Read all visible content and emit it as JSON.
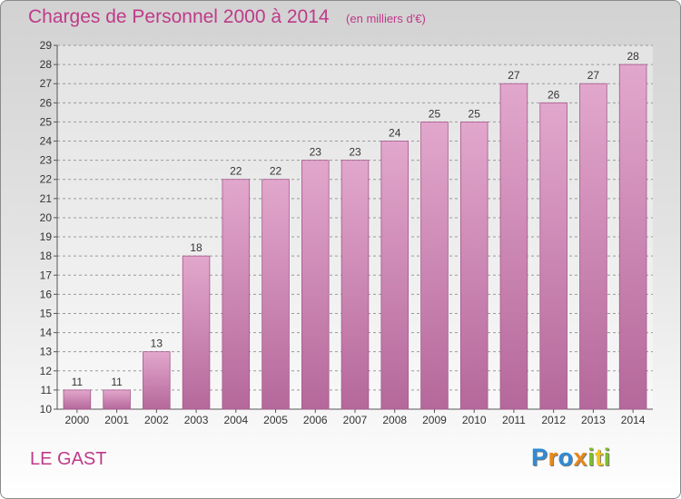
{
  "chart_data": {
    "type": "bar",
    "title": "Charges de Personnel 2000 à 2014",
    "subtitle": "(en milliers d'€)",
    "categories": [
      "2000",
      "2001",
      "2002",
      "2003",
      "2004",
      "2005",
      "2006",
      "2007",
      "2008",
      "2009",
      "2010",
      "2011",
      "2012",
      "2013",
      "2014"
    ],
    "values": [
      11,
      11,
      13,
      18,
      22,
      22,
      23,
      23,
      24,
      25,
      25,
      27,
      26,
      27,
      28
    ],
    "ylim": [
      10,
      29
    ],
    "yticks": [
      10,
      11,
      12,
      13,
      14,
      15,
      16,
      17,
      18,
      19,
      20,
      21,
      22,
      23,
      24,
      25,
      26,
      27,
      28,
      29
    ],
    "grid": true,
    "bar_color": "#d98fbd",
    "label_color": "#bf3a88"
  },
  "commune": "LE GAST",
  "logo": {
    "letters": [
      "P",
      "r",
      "o",
      "x",
      "i",
      "t",
      "i"
    ],
    "colors": [
      "#2e8bd6",
      "#e8891a",
      "#2e8bd6",
      "#e8891a",
      "#7cbf2a",
      "#f0c419",
      "#7cbf2a"
    ]
  }
}
